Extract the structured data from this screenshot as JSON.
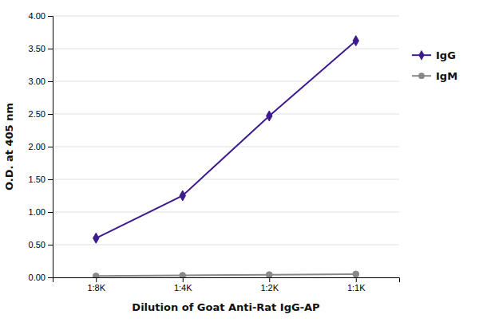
{
  "chart_data": {
    "type": "line",
    "categories": [
      "1:8K",
      "1:4K",
      "1:2K",
      "1:1K"
    ],
    "series": [
      {
        "name": "IgG",
        "color": "#3d1a8e",
        "marker": "diamond",
        "values": [
          0.6,
          1.25,
          2.47,
          3.62
        ]
      },
      {
        "name": "IgM",
        "color": "#888888",
        "marker": "circle",
        "values": [
          0.02,
          0.03,
          0.04,
          0.05
        ]
      }
    ],
    "xlabel": "Dilution of Goat Anti-Rat IgG-AP",
    "ylabel": "O.D. at 405 nm",
    "ylim": [
      0.0,
      4.0
    ],
    "yticks": [
      {
        "value": 0.0,
        "label": "0.00"
      },
      {
        "value": 0.5,
        "label": "0.50"
      },
      {
        "value": 1.0,
        "label": "1.00"
      },
      {
        "value": 1.5,
        "label": "1.50"
      },
      {
        "value": 2.0,
        "label": "2.00"
      },
      {
        "value": 2.5,
        "label": "2.50"
      },
      {
        "value": 3.0,
        "label": "3.00"
      },
      {
        "value": 3.5,
        "label": "3.50"
      },
      {
        "value": 4.0,
        "label": "4.00"
      }
    ],
    "grid": true,
    "legend": "right"
  }
}
